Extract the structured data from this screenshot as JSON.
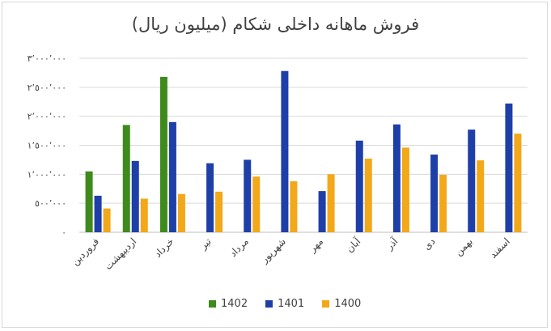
{
  "chart_data": {
    "type": "bar",
    "title": "فروش ماهانه داخلی شکام (میلیون ریال)",
    "categories": [
      "فروردین",
      "اردیبهشت",
      "خرداد",
      "تیر",
      "مرداد",
      "شهریور",
      "مهر",
      "آبان",
      "آذر",
      "دی",
      "بهمن",
      "اسفند"
    ],
    "series": [
      {
        "name": "1402",
        "color": "#3f8a1c",
        "values": [
          1050000,
          1850000,
          2680000,
          null,
          null,
          null,
          null,
          null,
          null,
          null,
          null,
          null
        ]
      },
      {
        "name": "1401",
        "color": "#1f3fa8",
        "values": [
          630000,
          1230000,
          1900000,
          1190000,
          1250000,
          2780000,
          710000,
          1580000,
          1860000,
          1340000,
          1770000,
          2220000
        ]
      },
      {
        "name": "1400",
        "color": "#f2a818",
        "values": [
          410000,
          580000,
          660000,
          700000,
          960000,
          880000,
          1000000,
          1270000,
          1460000,
          990000,
          1240000,
          1700000
        ]
      }
    ],
    "y_tick_labels": [
      "٠",
      "٥٠٠٬٠٠٠",
      "١٬٠٠٠٬٠٠٠",
      "١٬٥٠٠٬٠٠٠",
      "٢٬٠٠٠٬٠٠٠",
      "٢٬٥٠٠٬٠٠٠",
      "٣٬٠٠٠٬٠٠٠"
    ],
    "ylim": [
      0,
      3000000
    ],
    "grid": true,
    "legend": [
      "1402",
      "1401",
      "1400"
    ],
    "legend_position": "bottom"
  }
}
